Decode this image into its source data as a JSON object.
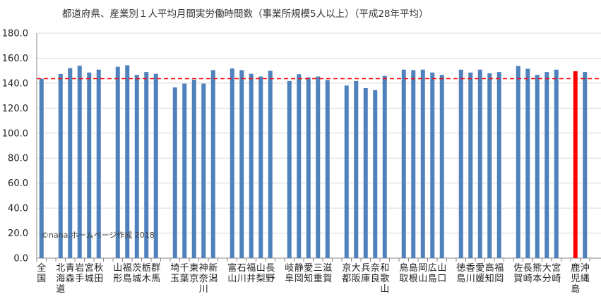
{
  "chart_data": {
    "type": "bar",
    "title": "都道府県、産業別１人平均月間実労働時間数（事業所規模5人以上）（平成28年平均）",
    "xlabel": "",
    "ylabel": "",
    "ylim": [
      0,
      180
    ],
    "yticks": [
      "0.0",
      "20.0",
      "40.0",
      "60.0",
      "80.0",
      "100.0",
      "120.0",
      "140.0",
      "160.0",
      "180.0"
    ],
    "grid": true,
    "bar_color": "#4F81BD",
    "highlight_color": "#FF0000",
    "highlight": "鹿児島",
    "reference_line": {
      "value": 143.6,
      "color": "#FF0000",
      "style": "dashed"
    },
    "watermark": "©nana.ホームページ作成 2018",
    "categories": [
      "全国",
      "",
      "北海道",
      "青森",
      "岩手",
      "宮城",
      "秋田",
      "",
      "山形",
      "福島",
      "茨城",
      "栃木",
      "群馬",
      "",
      "埼玉",
      "千葉",
      "東京",
      "神奈川",
      "新潟",
      "",
      "富山",
      "石川",
      "福井",
      "山梨",
      "長野",
      "",
      "岐阜",
      "静岡",
      "愛知",
      "三重",
      "滋賀",
      "",
      "京都",
      "大阪",
      "兵庫",
      "奈良",
      "和歌山",
      "",
      "鳥取",
      "島根",
      "岡山",
      "広島",
      "山口",
      "",
      "徳島",
      "香川",
      "愛媛",
      "高知",
      "福岡",
      "",
      "佐賀",
      "長崎",
      "熊本",
      "大分",
      "宮崎",
      "",
      "鹿児島",
      "沖縄"
    ],
    "values": [
      143.6,
      null,
      147.3,
      152.0,
      153.9,
      148.5,
      150.8,
      null,
      153.1,
      154.3,
      146.6,
      148.9,
      147.5,
      null,
      136.6,
      139.6,
      142.8,
      139.6,
      150.4,
      null,
      151.7,
      150.4,
      147.5,
      145.3,
      149.9,
      null,
      141.7,
      147.1,
      144.6,
      145.3,
      142.5,
      null,
      138.1,
      141.7,
      136.0,
      134.4,
      145.8,
      null,
      150.8,
      150.4,
      150.8,
      148.5,
      146.6,
      null,
      150.8,
      148.5,
      150.8,
      147.9,
      148.9,
      null,
      153.7,
      151.5,
      146.6,
      148.9,
      150.8,
      null,
      149.5,
      148.9
    ]
  }
}
